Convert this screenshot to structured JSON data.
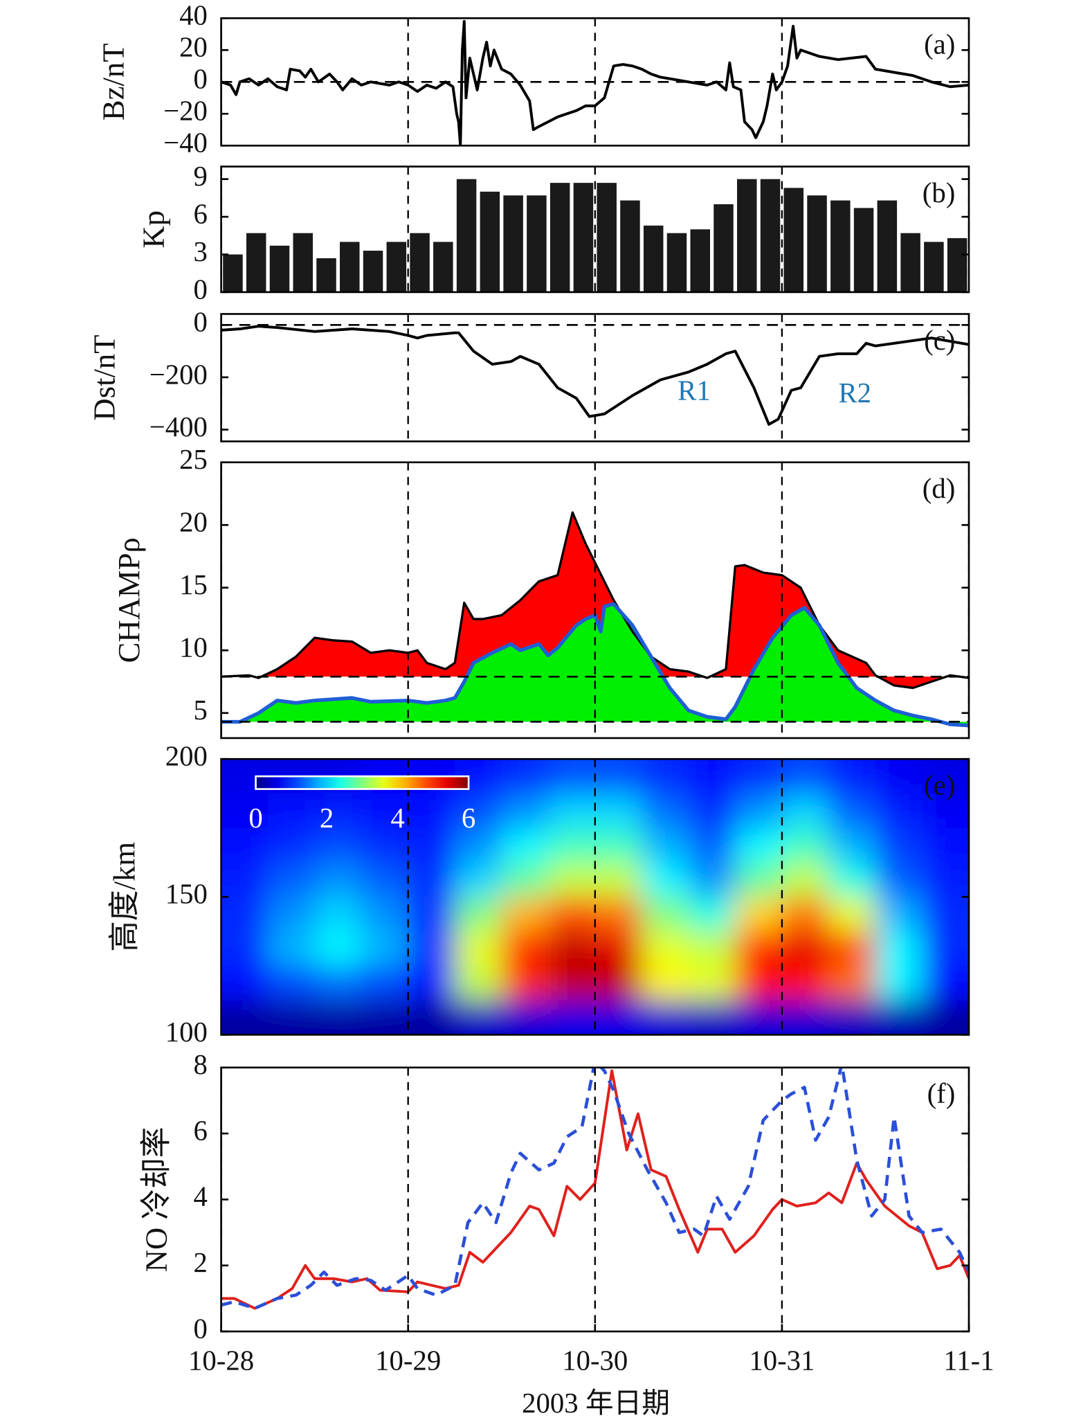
{
  "xaxis": {
    "xlim": [
      0,
      4
    ],
    "xticks": [
      {
        "value": 0,
        "label": "10-28"
      },
      {
        "value": 1,
        "label": "10-29"
      },
      {
        "value": 2,
        "label": "10-30"
      },
      {
        "value": 3,
        "label": "10-31"
      },
      {
        "value": 4,
        "label": "11-1"
      }
    ],
    "label": "2003 年日期"
  },
  "chart_data": [
    {
      "type": "line",
      "panel_label": "(a)",
      "ylabel": "Bz/nT",
      "ylim": [
        -40,
        40
      ],
      "yticks": [
        {
          "value": -40,
          "label": "−40"
        },
        {
          "value": -20,
          "label": "−20"
        },
        0,
        20,
        40
      ],
      "reference_lines": [
        0
      ],
      "series": [
        {
          "color": "#000000",
          "dash": false,
          "x": [
            0,
            0.05,
            0.08,
            0.1,
            0.15,
            0.2,
            0.25,
            0.3,
            0.35,
            0.37,
            0.42,
            0.45,
            0.48,
            0.52,
            0.58,
            0.62,
            0.65,
            0.7,
            0.75,
            0.8,
            0.9,
            0.95,
            1.0,
            1.05,
            1.1,
            1.15,
            1.2,
            1.24,
            1.26,
            1.27,
            1.28,
            1.29,
            1.3,
            1.31,
            1.33,
            1.35,
            1.37,
            1.4,
            1.42,
            1.44,
            1.46,
            1.5,
            1.55,
            1.6,
            1.65,
            1.67,
            1.7,
            1.75,
            1.8,
            1.85,
            1.9,
            1.95,
            2.0,
            2.05,
            2.1,
            2.15,
            2.2,
            2.25,
            2.3,
            2.35,
            2.4,
            2.5,
            2.6,
            2.65,
            2.7,
            2.72,
            2.74,
            2.78,
            2.8,
            2.84,
            2.86,
            2.9,
            2.92,
            2.95,
            2.97,
            3.0,
            3.03,
            3.06,
            3.08,
            3.1,
            3.2,
            3.3,
            3.45,
            3.5,
            3.6,
            3.7,
            3.8,
            3.9,
            4.0
          ],
          "values": [
            0,
            -2,
            -8,
            0,
            2,
            -2,
            2,
            -3,
            -5,
            8,
            7,
            3,
            8,
            0,
            5,
            0,
            -5,
            2,
            -2,
            0,
            -2,
            0,
            -2,
            -6,
            -2,
            -4,
            0,
            -3,
            -20,
            -25,
            -40,
            20,
            38,
            -10,
            15,
            5,
            -5,
            15,
            25,
            10,
            20,
            8,
            5,
            -2,
            -12,
            -30,
            -28,
            -25,
            -22,
            -20,
            -18,
            -15,
            -15,
            -10,
            10,
            11,
            10,
            8,
            5,
            3,
            2,
            0,
            -2,
            0,
            -5,
            12,
            -3,
            -5,
            -25,
            -30,
            -35,
            -25,
            -15,
            5,
            -5,
            0,
            10,
            35,
            15,
            20,
            16,
            14,
            16,
            8,
            6,
            4,
            0,
            -3,
            -2
          ]
        }
      ]
    },
    {
      "type": "bar",
      "panel_label": "(b)",
      "ylabel": "Kp",
      "ylim": [
        0,
        10
      ],
      "yticks": [
        0,
        3,
        6,
        9
      ],
      "color": "#1a1a1a",
      "bar_width": 0.125,
      "x": [
        0,
        0.125,
        0.25,
        0.375,
        0.5,
        0.625,
        0.75,
        0.875,
        1,
        1.125,
        1.25,
        1.375,
        1.5,
        1.625,
        1.75,
        1.875,
        2,
        2.125,
        2.25,
        2.375,
        2.5,
        2.625,
        2.75,
        2.875,
        3,
        3.125,
        3.25,
        3.375,
        3.5,
        3.625,
        3.75,
        3.875
      ],
      "values": [
        3,
        4.7,
        3.7,
        4.7,
        2.7,
        4,
        3.3,
        4,
        4.7,
        4,
        9,
        8,
        7.7,
        7.7,
        8.7,
        8.7,
        8.7,
        7.3,
        5.3,
        4.7,
        5,
        7,
        9,
        9,
        8.3,
        7.7,
        7.3,
        6.7,
        7.3,
        4.7,
        4,
        4.3
      ]
    },
    {
      "type": "line",
      "panel_label": "(c)",
      "ylabel": "Dst/nT",
      "ylim": [
        -445,
        42
      ],
      "yticks": [
        {
          "value": -400,
          "label": "−400"
        },
        {
          "value": -200,
          "label": "−200"
        },
        0
      ],
      "reference_lines": [
        0
      ],
      "series": [
        {
          "color": "#000000",
          "dash": false,
          "x": [
            0,
            0.1,
            0.2,
            0.3,
            0.5,
            0.7,
            0.9,
            1.0,
            1.05,
            1.1,
            1.25,
            1.27,
            1.35,
            1.45,
            1.55,
            1.6,
            1.7,
            1.8,
            1.9,
            1.97,
            2.05,
            2.2,
            2.35,
            2.5,
            2.6,
            2.7,
            2.75,
            2.85,
            2.93,
            2.98,
            3.05,
            3.1,
            3.2,
            3.3,
            3.4,
            3.45,
            3.5,
            3.6,
            3.8,
            4.0
          ],
          "values": [
            -20,
            -15,
            -5,
            -10,
            -25,
            -15,
            -25,
            -40,
            -50,
            -40,
            -30,
            -30,
            -100,
            -150,
            -140,
            -120,
            -150,
            -240,
            -280,
            -350,
            -340,
            -270,
            -210,
            -180,
            -150,
            -110,
            -100,
            -240,
            -380,
            -360,
            -250,
            -240,
            -120,
            -110,
            -110,
            -70,
            -80,
            -70,
            -50,
            -75
          ]
        }
      ],
      "annotations": [
        {
          "text": "R1",
          "x": 2.53,
          "y": -261,
          "color": "#1f77b4"
        },
        {
          "text": "R2",
          "x": 3.39,
          "y": -271,
          "color": "#1f77b4"
        }
      ]
    },
    {
      "type": "area",
      "panel_label": "(d)",
      "ylabel": "CHAMPρ",
      "ylim": [
        3,
        25
      ],
      "yticks": [
        5,
        10,
        15,
        20,
        25
      ],
      "reference_lines": [
        7.9,
        4.3
      ],
      "series": [
        {
          "color": "#000000",
          "fill": "#ff0000",
          "x": [
            0,
            0.15,
            0.2,
            0.3,
            0.4,
            0.5,
            0.6,
            0.7,
            0.8,
            0.9,
            1.0,
            1.05,
            1.1,
            1.2,
            1.25,
            1.3,
            1.35,
            1.4,
            1.5,
            1.6,
            1.7,
            1.8,
            1.88,
            1.95,
            2.0,
            2.1,
            2.2,
            2.3,
            2.4,
            2.5,
            2.6,
            2.7,
            2.75,
            2.8,
            2.9,
            3.0,
            3.1,
            3.2,
            3.3,
            3.45,
            3.5,
            3.6,
            3.7,
            3.8,
            3.9,
            4
          ],
          "values": [
            7.9,
            8.0,
            7.8,
            8.5,
            9.5,
            11,
            10.8,
            10.7,
            9.8,
            10,
            9.8,
            10,
            9,
            8.5,
            9,
            13.8,
            12.5,
            12.5,
            12.8,
            14,
            15.5,
            16,
            21,
            18.5,
            17,
            14,
            11.5,
            9.5,
            8.5,
            8.3,
            7.8,
            8.5,
            16.7,
            16.8,
            16.2,
            16,
            15,
            12,
            10,
            9,
            8,
            7.2,
            7,
            7.5,
            8,
            7.8
          ]
        },
        {
          "color": "#1f5fd6",
          "fill": "#00ee00",
          "x": [
            0,
            0.1,
            0.2,
            0.3,
            0.4,
            0.5,
            0.7,
            0.8,
            1.0,
            1.1,
            1.2,
            1.25,
            1.3,
            1.35,
            1.45,
            1.55,
            1.6,
            1.7,
            1.75,
            1.8,
            1.9,
            1.95,
            2.0,
            2.03,
            2.05,
            2.1,
            2.2,
            2.3,
            2.4,
            2.5,
            2.6,
            2.7,
            2.75,
            2.85,
            2.95,
            3.05,
            3.12,
            3.2,
            3.3,
            3.4,
            3.5,
            3.6,
            3.7,
            3.8,
            3.9,
            4
          ],
          "values": [
            4.3,
            4.3,
            5,
            6,
            5.8,
            6,
            6.2,
            5.9,
            6,
            5.8,
            6,
            6.2,
            7.5,
            9,
            9.8,
            10.5,
            10,
            10.5,
            9.6,
            10.2,
            12,
            12.5,
            12.8,
            11.5,
            13.5,
            13.7,
            12,
            9.5,
            7,
            5.2,
            4.7,
            4.5,
            5.5,
            8.5,
            11,
            12.8,
            13.4,
            12,
            9,
            7,
            6,
            5.2,
            4.8,
            4.5,
            4.1,
            4.0
          ]
        }
      ]
    },
    {
      "type": "heatmap",
      "panel_label": "(e)",
      "ylabel": "高度/km",
      "ylim": [
        100,
        200
      ],
      "yticks": [
        100,
        150,
        200
      ],
      "colorbar": {
        "range": [
          0,
          6
        ],
        "ticks": [
          0,
          2,
          4,
          6
        ]
      },
      "x": [
        0.125,
        0.375,
        0.625,
        0.875,
        1.125,
        1.375,
        1.625,
        1.875,
        2.125,
        2.375,
        2.625,
        2.875,
        3.125,
        3.375,
        3.625,
        3.875
      ],
      "y": [
        193.75,
        181.25,
        168.75,
        156.25,
        143.75,
        131.25,
        118.75,
        106.25
      ],
      "z": [
        [
          0.6,
          0.6,
          0.6,
          0.7,
          0.7,
          0.8,
          1.0,
          1.2,
          1.2,
          1.0,
          0.8,
          1.0,
          1.2,
          0.9,
          0.7,
          0.6
        ],
        [
          0.7,
          0.8,
          0.9,
          0.8,
          0.8,
          1.2,
          1.6,
          2.0,
          2.0,
          1.4,
          1.0,
          1.6,
          2.0,
          1.3,
          0.9,
          0.7
        ],
        [
          0.8,
          1.0,
          1.2,
          1.0,
          0.9,
          1.6,
          2.2,
          2.6,
          2.6,
          1.8,
          1.3,
          2.2,
          2.6,
          1.8,
          1.1,
          0.8
        ],
        [
          0.9,
          1.3,
          1.6,
          1.3,
          1.0,
          2.0,
          2.8,
          3.4,
          3.4,
          2.2,
          1.6,
          2.8,
          3.4,
          2.4,
          1.3,
          0.9
        ],
        [
          1.0,
          1.6,
          2.0,
          1.6,
          1.0,
          3.0,
          4.2,
          4.8,
          4.6,
          3.0,
          2.4,
          4.0,
          4.6,
          3.6,
          1.8,
          1.0
        ],
        [
          1.0,
          1.8,
          2.2,
          1.8,
          1.0,
          3.6,
          5.0,
          5.6,
          5.4,
          3.6,
          3.4,
          5.0,
          5.4,
          4.8,
          2.2,
          1.0
        ],
        [
          0.8,
          1.2,
          1.4,
          1.2,
          0.8,
          3.4,
          5.0,
          5.6,
          5.6,
          3.8,
          3.6,
          5.2,
          5.2,
          4.6,
          2.2,
          0.8
        ],
        [
          0.2,
          0.2,
          0.2,
          0.2,
          0.2,
          0.4,
          0.5,
          0.6,
          0.6,
          0.5,
          0.4,
          0.5,
          0.5,
          0.4,
          0.3,
          0.2
        ]
      ]
    },
    {
      "type": "line",
      "panel_label": "(f)",
      "ylabel": "NO 冷却率",
      "ylim": [
        0,
        8
      ],
      "yticks": [
        0,
        2,
        4,
        6,
        8
      ],
      "series": [
        {
          "color": "#e0201c",
          "dash": false,
          "x": [
            0,
            0.07,
            0.18,
            0.3,
            0.38,
            0.45,
            0.5,
            0.6,
            0.7,
            0.78,
            0.85,
            1.0,
            1.05,
            1.2,
            1.27,
            1.33,
            1.4,
            1.55,
            1.65,
            1.7,
            1.78,
            1.85,
            1.92,
            2.0,
            2.09,
            2.17,
            2.23,
            2.3,
            2.38,
            2.45,
            2.55,
            2.6,
            2.68,
            2.75,
            2.85,
            2.95,
            3.0,
            3.08,
            3.18,
            3.25,
            3.32,
            3.4,
            3.45,
            3.55,
            3.68,
            3.75,
            3.83,
            3.9,
            3.95,
            4.0
          ],
          "values": [
            1.0,
            1.0,
            0.7,
            1.0,
            1.3,
            2.0,
            1.6,
            1.6,
            1.5,
            1.6,
            1.25,
            1.2,
            1.5,
            1.3,
            1.4,
            2.4,
            2.1,
            3.0,
            3.8,
            3.7,
            2.9,
            4.4,
            4.0,
            4.5,
            7.9,
            5.5,
            6.6,
            4.9,
            4.7,
            3.7,
            2.4,
            3.1,
            3.1,
            2.4,
            2.9,
            3.7,
            4.0,
            3.8,
            3.9,
            4.2,
            3.9,
            5.1,
            4.6,
            3.8,
            3.2,
            3.0,
            1.9,
            2.0,
            2.3,
            1.6
          ]
        },
        {
          "color": "#2a4fd8",
          "dash": true,
          "x": [
            0,
            0.07,
            0.18,
            0.3,
            0.4,
            0.48,
            0.55,
            0.62,
            0.72,
            0.8,
            0.88,
            1.0,
            1.05,
            1.15,
            1.25,
            1.32,
            1.4,
            1.47,
            1.55,
            1.6,
            1.7,
            1.78,
            1.85,
            1.93,
            2.0,
            2.05,
            2.1,
            2.18,
            2.28,
            2.38,
            2.45,
            2.53,
            2.58,
            2.65,
            2.72,
            2.82,
            2.9,
            3.0,
            3.05,
            3.12,
            3.18,
            3.25,
            3.32,
            3.4,
            3.48,
            3.55,
            3.6,
            3.68,
            3.75,
            3.85,
            3.95,
            4.0
          ],
          "values": [
            0.8,
            0.9,
            0.7,
            1.0,
            1.1,
            1.4,
            1.8,
            1.4,
            1.6,
            1.55,
            1.25,
            1.7,
            1.3,
            1.1,
            1.4,
            3.3,
            3.9,
            3.3,
            4.8,
            5.4,
            4.9,
            5.1,
            5.9,
            6.2,
            8.2,
            7.9,
            7.3,
            6.0,
            4.9,
            3.9,
            3.0,
            3.1,
            2.9,
            4.1,
            3.4,
            4.4,
            6.4,
            7.0,
            7.2,
            7.4,
            5.8,
            6.5,
            8.1,
            5.2,
            3.5,
            4.0,
            6.5,
            3.5,
            3.0,
            3.1,
            2.4,
            1.8
          ]
        }
      ]
    }
  ]
}
